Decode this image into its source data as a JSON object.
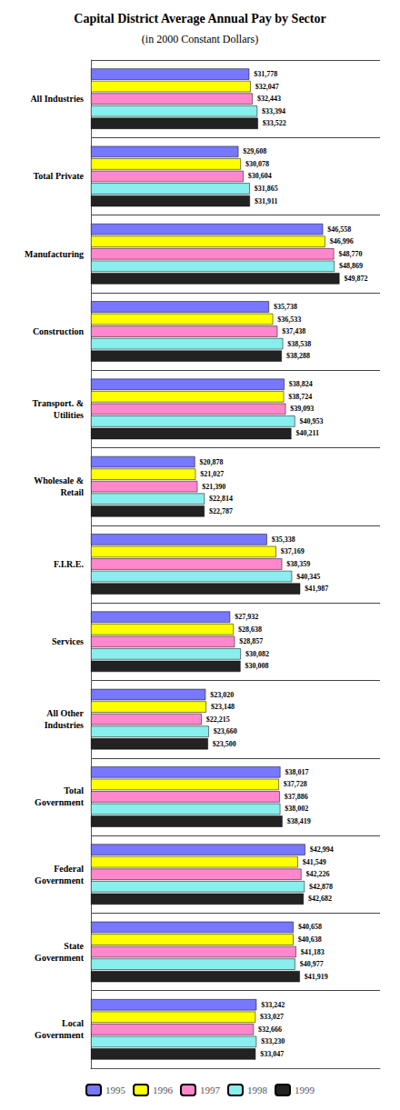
{
  "chart_data": {
    "type": "bar",
    "orientation": "horizontal",
    "title": "Capital District Average Annual Pay by Sector",
    "subtitle": "(in 2000 Constant Dollars)",
    "categories": [
      "All Industries",
      "Total Private",
      "Manufacturing",
      "Construction",
      "Transport. &\nUtilities",
      "Wholesale &\nRetail",
      "F.I.R.E.",
      "Services",
      "All Other\nIndustries",
      "Total\nGovernment",
      "Federal\nGovernment",
      "State\nGovernment",
      "Local\nGovernment"
    ],
    "series": [
      {
        "name": "1995",
        "color": "#7777ff",
        "values": [
          31778,
          29608,
          46558,
          35738,
          38824,
          20878,
          35338,
          27932,
          23020,
          38017,
          42994,
          40658,
          33242
        ],
        "value_labels": [
          "$31,778",
          "$29,608",
          "$46,558",
          "$35,738",
          "$38,824",
          "$20,878",
          "$35,338",
          "$27,932",
          "$23,020",
          "$38,017",
          "$42,994",
          "$40,658",
          "$33,242"
        ]
      },
      {
        "name": "1996",
        "color": "#ffff00",
        "values": [
          32047,
          30078,
          46996,
          36533,
          38724,
          21027,
          37169,
          28638,
          23148,
          37728,
          41549,
          40638,
          33027
        ],
        "value_labels": [
          "$32,047",
          "$30,078",
          "$46,996",
          "$36,533",
          "$38,724",
          "$21,027",
          "$37,169",
          "$28,638",
          "$23,148",
          "$37,728",
          "$41,549",
          "$40,638",
          "$33,027"
        ]
      },
      {
        "name": "1997",
        "color": "#ff88cc",
        "values": [
          32443,
          30604,
          48770,
          37438,
          39093,
          21390,
          38359,
          28857,
          22215,
          37886,
          42226,
          41183,
          32666
        ],
        "value_labels": [
          "$32,443",
          "$30,604",
          "$48,770",
          "$37,438",
          "$39,093",
          "$21,390",
          "$38,359",
          "$28,857",
          "$22,215",
          "$37,886",
          "$42,226",
          "$41,183",
          "$32,666"
        ]
      },
      {
        "name": "1998",
        "color": "#88eeee",
        "values": [
          33394,
          31865,
          48869,
          38538,
          40953,
          22814,
          40345,
          30082,
          23660,
          38002,
          42878,
          40977,
          33230
        ],
        "value_labels": [
          "$33,394",
          "$31,865",
          "$48,869",
          "$38,538",
          "$40,953",
          "$22,814",
          "$40,345",
          "$30,082",
          "$23,660",
          "$38,002",
          "$42,878",
          "$40,977",
          "$33,230"
        ]
      },
      {
        "name": "1999",
        "color": "#222222",
        "values": [
          33522,
          31911,
          49872,
          38288,
          40211,
          22787,
          41987,
          30008,
          23500,
          38419,
          42682,
          41919,
          33047
        ],
        "value_labels": [
          "$33,522",
          "$31,911",
          "$49,872",
          "$38,288",
          "$40,211",
          "$22,787",
          "$41,987",
          "$30,008",
          "$23,500",
          "$38,419",
          "$42,682",
          "$41,919",
          "$33,047"
        ]
      }
    ],
    "xlim": [
      0,
      58000
    ],
    "tick_labels": "y",
    "data_labels": true,
    "grid": true,
    "legend": "bottom"
  }
}
